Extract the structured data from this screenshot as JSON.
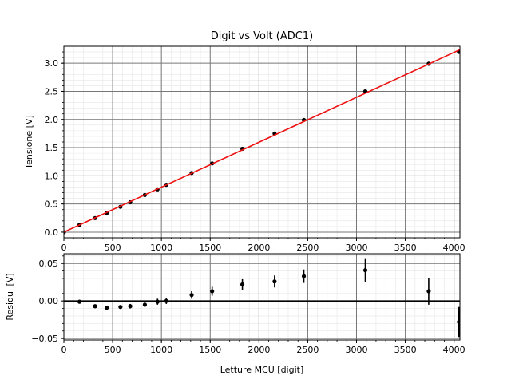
{
  "chart_data": [
    {
      "type": "scatter",
      "panel": "top",
      "title": "Digit vs Volt (ADC1)",
      "xlabel": "",
      "ylabel": "Tensione [V]",
      "xlim": [
        0,
        4060
      ],
      "ylim": [
        -0.1,
        3.3
      ],
      "xticks": [
        0,
        500,
        1000,
        1500,
        2000,
        2500,
        3000,
        3500,
        4000
      ],
      "yticks": [
        0.0,
        0.5,
        1.0,
        1.5,
        2.0,
        2.5,
        3.0
      ],
      "xtick_labels": [
        "0",
        "500",
        "1000",
        "1500",
        "2000",
        "2500",
        "3000",
        "3500",
        "4000"
      ],
      "ytick_labels": [
        "0.0",
        "0.5",
        "1.0",
        "1.5",
        "2.0",
        "2.5",
        "3.0"
      ],
      "grid": true,
      "minor_grid": true,
      "series": [
        {
          "kind": "points",
          "color": "#000000",
          "x": [
            0,
            160,
            320,
            440,
            580,
            680,
            830,
            960,
            1050,
            1310,
            1520,
            1830,
            2160,
            2460,
            3090,
            3740,
            4050
          ],
          "y": [
            0.0,
            0.13,
            0.25,
            0.34,
            0.45,
            0.53,
            0.66,
            0.76,
            0.84,
            1.05,
            1.22,
            1.48,
            1.75,
            1.99,
            2.5,
            2.99,
            3.2
          ]
        },
        {
          "kind": "line",
          "color": "#ee1111",
          "x": [
            0,
            4060
          ],
          "y": [
            0.0,
            3.24
          ]
        }
      ]
    },
    {
      "type": "scatter",
      "panel": "bottom",
      "title": "",
      "xlabel": "Letture MCU [digit]",
      "ylabel": "Residui [V]",
      "xlim": [
        0,
        4060
      ],
      "ylim": [
        -0.052,
        0.063
      ],
      "xticks": [
        0,
        500,
        1000,
        1500,
        2000,
        2500,
        3000,
        3500,
        4000
      ],
      "yticks": [
        -0.05,
        0.0,
        0.05
      ],
      "xtick_labels": [
        "0",
        "500",
        "1000",
        "1500",
        "2000",
        "2500",
        "3000",
        "3500",
        "4000"
      ],
      "ytick_labels": [
        "−0.05",
        "0.00",
        "0.05"
      ],
      "grid": true,
      "minor_grid": true,
      "zero_line": 0.0,
      "series": [
        {
          "kind": "errorbar",
          "color": "#000000",
          "x": [
            160,
            320,
            440,
            580,
            680,
            830,
            960,
            1050,
            1310,
            1520,
            1830,
            2160,
            2460,
            3090,
            3740,
            4050
          ],
          "y": [
            -0.001,
            -0.007,
            -0.009,
            -0.008,
            -0.007,
            -0.005,
            -0.001,
            0.0,
            0.008,
            0.013,
            0.022,
            0.026,
            0.033,
            0.041,
            0.013,
            -0.028
          ],
          "err": [
            0.001,
            0.002,
            0.002,
            0.002,
            0.003,
            0.003,
            0.004,
            0.004,
            0.005,
            0.006,
            0.007,
            0.008,
            0.009,
            0.016,
            0.018,
            0.02
          ]
        }
      ]
    }
  ]
}
